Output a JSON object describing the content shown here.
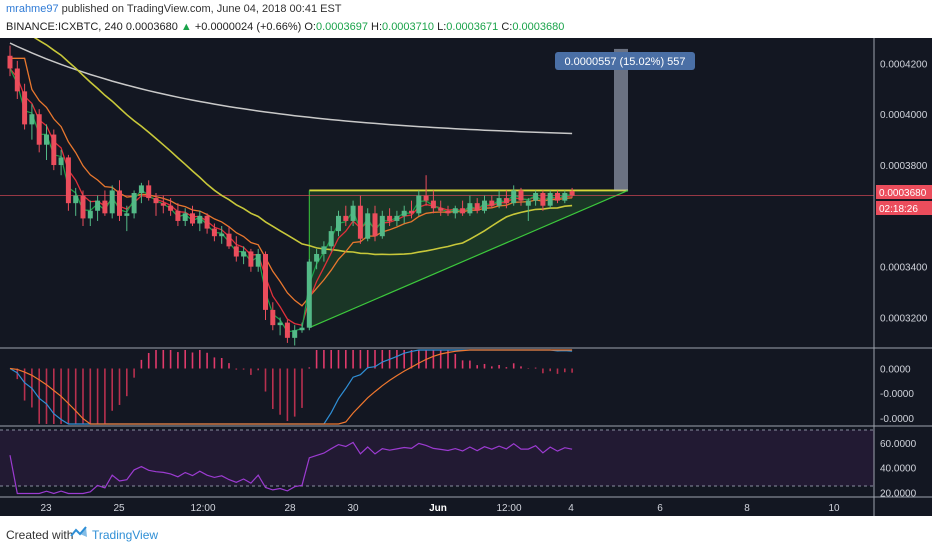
{
  "header": {
    "publisher": "mrahme97",
    "published_text": "published on TradingView.com, June 04, 2018 00:41 EST",
    "symbol": "BINANCE:ICXBTC, 240",
    "last": "0.0003680",
    "change": "+0.0000024 (+0.66%)",
    "open_label": "O:",
    "open": "0.0003697",
    "high_label": "H:",
    "high": "0.0003710",
    "low_label": "L:",
    "low": "0.0003671",
    "close_label": "C:",
    "close": "0.0003680"
  },
  "footer": {
    "created_with": "Created with",
    "brand": "TradingView"
  },
  "colors": {
    "background": "#131722",
    "up": "#53b987",
    "down": "#eb4d5c",
    "ema_fast": "#1aa34a",
    "ema_red": "#e0303a",
    "ema_orange": "#e8772e",
    "sma_yellow": "#c8c83a",
    "sma_white": "#c9c9c9",
    "triangle": "#3cc83c",
    "rsi": "#9c3bd1",
    "macd": "#2f8fd6",
    "signal": "#f0772e"
  },
  "chart_data": [
    {
      "type": "candlestick",
      "title": "BINANCE:ICXBTC, 240",
      "ylim": [
        0.000308,
        0.00043
      ],
      "y_ticks": [
        "0.0004200",
        "0.0004000",
        "0.0003800",
        "0.0003400",
        "0.0003200"
      ],
      "x_ticks": [
        "23",
        "25",
        "12:00",
        "28",
        "30",
        "Jun",
        "12:00",
        "4",
        "6",
        "8",
        "10"
      ],
      "price_label": "0.0003680",
      "countdown_label": "02:18:26",
      "measure_label": "0.0000557 (15.02%) 557",
      "pattern": "ascending triangle",
      "resistance": 0.00037,
      "measured_move_target": 0.0004257,
      "candles": [
        {
          "o": 0.000423,
          "h": 0.000427,
          "l": 0.000415,
          "c": 0.000418
        },
        {
          "o": 0.000418,
          "h": 0.000421,
          "l": 0.000406,
          "c": 0.000409
        },
        {
          "o": 0.000409,
          "h": 0.000412,
          "l": 0.000394,
          "c": 0.000396
        },
        {
          "o": 0.000396,
          "h": 0.000404,
          "l": 0.00039,
          "c": 0.0004
        },
        {
          "o": 0.0004,
          "h": 0.000402,
          "l": 0.000385,
          "c": 0.000388
        },
        {
          "o": 0.000388,
          "h": 0.000396,
          "l": 0.000382,
          "c": 0.000392
        },
        {
          "o": 0.000392,
          "h": 0.000394,
          "l": 0.000378,
          "c": 0.00038
        },
        {
          "o": 0.00038,
          "h": 0.000386,
          "l": 0.000376,
          "c": 0.000383
        },
        {
          "o": 0.000383,
          "h": 0.000384,
          "l": 0.000362,
          "c": 0.000365
        },
        {
          "o": 0.000365,
          "h": 0.000371,
          "l": 0.00036,
          "c": 0.000368
        },
        {
          "o": 0.000368,
          "h": 0.00037,
          "l": 0.000356,
          "c": 0.000359
        },
        {
          "o": 0.000359,
          "h": 0.000366,
          "l": 0.000356,
          "c": 0.000362
        },
        {
          "o": 0.000362,
          "h": 0.000368,
          "l": 0.000358,
          "c": 0.000366
        },
        {
          "o": 0.000366,
          "h": 0.00037,
          "l": 0.00036,
          "c": 0.000361
        },
        {
          "o": 0.000361,
          "h": 0.000372,
          "l": 0.000359,
          "c": 0.00037
        },
        {
          "o": 0.00037,
          "h": 0.000374,
          "l": 0.000358,
          "c": 0.00036
        },
        {
          "o": 0.00036,
          "h": 0.000364,
          "l": 0.000354,
          "c": 0.000361
        },
        {
          "o": 0.000361,
          "h": 0.00037,
          "l": 0.000359,
          "c": 0.000369
        },
        {
          "o": 0.000369,
          "h": 0.000373,
          "l": 0.000365,
          "c": 0.000372
        },
        {
          "o": 0.000372,
          "h": 0.000374,
          "l": 0.000366,
          "c": 0.000367
        },
        {
          "o": 0.000367,
          "h": 0.000369,
          "l": 0.00036,
          "c": 0.000365
        },
        {
          "o": 0.000365,
          "h": 0.000368,
          "l": 0.000361,
          "c": 0.000364
        },
        {
          "o": 0.000364,
          "h": 0.000367,
          "l": 0.00036,
          "c": 0.000362
        },
        {
          "o": 0.000362,
          "h": 0.000365,
          "l": 0.000356,
          "c": 0.000358
        },
        {
          "o": 0.000358,
          "h": 0.000363,
          "l": 0.000356,
          "c": 0.000361
        },
        {
          "o": 0.000361,
          "h": 0.000364,
          "l": 0.000356,
          "c": 0.000357
        },
        {
          "o": 0.000357,
          "h": 0.000362,
          "l": 0.000354,
          "c": 0.00036
        },
        {
          "o": 0.00036,
          "h": 0.000361,
          "l": 0.000353,
          "c": 0.000355
        },
        {
          "o": 0.000355,
          "h": 0.000357,
          "l": 0.00035,
          "c": 0.000352
        },
        {
          "o": 0.000352,
          "h": 0.000356,
          "l": 0.000349,
          "c": 0.000353
        },
        {
          "o": 0.000353,
          "h": 0.000356,
          "l": 0.000347,
          "c": 0.000348
        },
        {
          "o": 0.000348,
          "h": 0.000352,
          "l": 0.000342,
          "c": 0.000344
        },
        {
          "o": 0.000344,
          "h": 0.000348,
          "l": 0.000341,
          "c": 0.000346
        },
        {
          "o": 0.000346,
          "h": 0.000347,
          "l": 0.000338,
          "c": 0.00034
        },
        {
          "o": 0.00034,
          "h": 0.000347,
          "l": 0.000338,
          "c": 0.000345
        },
        {
          "o": 0.000345,
          "h": 0.000346,
          "l": 0.000319,
          "c": 0.000323
        },
        {
          "o": 0.000323,
          "h": 0.000326,
          "l": 0.000315,
          "c": 0.000317
        },
        {
          "o": 0.000317,
          "h": 0.00032,
          "l": 0.000313,
          "c": 0.000318
        },
        {
          "o": 0.000318,
          "h": 0.000319,
          "l": 0.00031,
          "c": 0.000312
        },
        {
          "o": 0.000312,
          "h": 0.000317,
          "l": 0.000309,
          "c": 0.000315
        },
        {
          "o": 0.000315,
          "h": 0.000318,
          "l": 0.000314,
          "c": 0.000316
        },
        {
          "o": 0.000316,
          "h": 0.000343,
          "l": 0.000315,
          "c": 0.000342
        },
        {
          "o": 0.000342,
          "h": 0.000347,
          "l": 0.000339,
          "c": 0.000345
        },
        {
          "o": 0.000345,
          "h": 0.00035,
          "l": 0.000342,
          "c": 0.000348
        },
        {
          "o": 0.000348,
          "h": 0.000356,
          "l": 0.000346,
          "c": 0.000354
        },
        {
          "o": 0.000354,
          "h": 0.000362,
          "l": 0.000352,
          "c": 0.00036
        },
        {
          "o": 0.00036,
          "h": 0.000364,
          "l": 0.000356,
          "c": 0.000358
        },
        {
          "o": 0.000358,
          "h": 0.000366,
          "l": 0.000356,
          "c": 0.000364
        },
        {
          "o": 0.000364,
          "h": 0.000368,
          "l": 0.000349,
          "c": 0.000351
        },
        {
          "o": 0.000351,
          "h": 0.000363,
          "l": 0.00035,
          "c": 0.000361
        },
        {
          "o": 0.000361,
          "h": 0.000364,
          "l": 0.00035,
          "c": 0.000352
        },
        {
          "o": 0.000352,
          "h": 0.000362,
          "l": 0.000351,
          "c": 0.00036
        },
        {
          "o": 0.00036,
          "h": 0.000363,
          "l": 0.000356,
          "c": 0.000358
        },
        {
          "o": 0.000358,
          "h": 0.000362,
          "l": 0.000356,
          "c": 0.00036
        },
        {
          "o": 0.00036,
          "h": 0.000364,
          "l": 0.000357,
          "c": 0.000362
        },
        {
          "o": 0.000362,
          "h": 0.000366,
          "l": 0.000359,
          "c": 0.000361
        },
        {
          "o": 0.000361,
          "h": 0.00037,
          "l": 0.00036,
          "c": 0.000368
        },
        {
          "o": 0.000368,
          "h": 0.000376,
          "l": 0.000364,
          "c": 0.000366
        },
        {
          "o": 0.000366,
          "h": 0.00037,
          "l": 0.000361,
          "c": 0.000363
        },
        {
          "o": 0.000363,
          "h": 0.000366,
          "l": 0.00036,
          "c": 0.000362
        },
        {
          "o": 0.000362,
          "h": 0.000364,
          "l": 0.00036,
          "c": 0.000361
        },
        {
          "o": 0.000361,
          "h": 0.000364,
          "l": 0.000359,
          "c": 0.000363
        },
        {
          "o": 0.000363,
          "h": 0.000366,
          "l": 0.00036,
          "c": 0.000361
        },
        {
          "o": 0.000361,
          "h": 0.000368,
          "l": 0.00036,
          "c": 0.000365
        },
        {
          "o": 0.000365,
          "h": 0.000367,
          "l": 0.000361,
          "c": 0.000362
        },
        {
          "o": 0.000362,
          "h": 0.000368,
          "l": 0.000361,
          "c": 0.000366
        },
        {
          "o": 0.000366,
          "h": 0.000368,
          "l": 0.000363,
          "c": 0.000364
        },
        {
          "o": 0.000364,
          "h": 0.00037,
          "l": 0.000363,
          "c": 0.000367
        },
        {
          "o": 0.000367,
          "h": 0.00037,
          "l": 0.000363,
          "c": 0.000365
        },
        {
          "o": 0.000365,
          "h": 0.000372,
          "l": 0.000364,
          "c": 0.00037
        },
        {
          "o": 0.00037,
          "h": 0.000371,
          "l": 0.000364,
          "c": 0.000366
        },
        {
          "o": 0.000364,
          "h": 0.000367,
          "l": 0.000358,
          "c": 0.000366
        },
        {
          "o": 0.000366,
          "h": 0.00037,
          "l": 0.000364,
          "c": 0.000369
        },
        {
          "o": 0.000369,
          "h": 0.00037,
          "l": 0.000362,
          "c": 0.000364
        },
        {
          "o": 0.000364,
          "h": 0.00037,
          "l": 0.000363,
          "c": 0.000369
        },
        {
          "o": 0.000369,
          "h": 0.00037,
          "l": 0.000365,
          "c": 0.000366
        },
        {
          "o": 0.000366,
          "h": 0.00037,
          "l": 0.000365,
          "c": 0.000369
        },
        {
          "o": 0.0003697,
          "h": 0.000371,
          "l": 0.0003671,
          "c": 0.000368
        }
      ]
    },
    {
      "type": "line",
      "title": "MACD",
      "ylim": [
        -9e-06,
        3e-06
      ],
      "y_ticks": [
        "0.0000",
        "-0.0000",
        "-0.0000"
      ]
    },
    {
      "type": "line",
      "title": "RSI",
      "ylim": [
        17,
        72
      ],
      "y_ticks": [
        "60.0000",
        "40.0000",
        "20.0000"
      ],
      "bands": [
        70,
        30
      ]
    }
  ]
}
